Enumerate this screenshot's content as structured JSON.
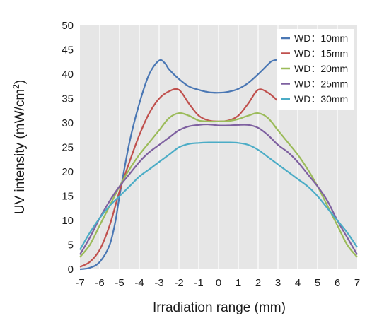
{
  "chart_data": {
    "type": "line",
    "title": "",
    "xlabel": "Irradiation range (mm)",
    "ylabel_main": "UV intensity (mW/cm",
    "ylabel_sup": "2",
    "ylabel_end": ")",
    "xlim": [
      -7,
      7
    ],
    "ylim": [
      0,
      50
    ],
    "xticks": [
      -7,
      -6,
      -5,
      -4,
      -3,
      -2,
      -1,
      0,
      1,
      2,
      3,
      4,
      5,
      6,
      7
    ],
    "yticks": [
      0,
      5,
      10,
      15,
      20,
      25,
      30,
      35,
      40,
      45,
      50
    ],
    "grid": "vertical",
    "background": "#e6e6e6",
    "legend_position": "top-right",
    "series": [
      {
        "name": "WD：10mm",
        "color": "#4a77b4",
        "x": [
          -7,
          -6.5,
          -6,
          -5.5,
          -5.2,
          -5,
          -4.5,
          -4,
          -3.5,
          -3,
          -2.7,
          -2.5,
          -2,
          -1.5,
          -1,
          -0.5,
          0,
          0.5,
          1,
          1.5,
          2,
          2.5,
          2.7,
          3
        ],
        "y": [
          0,
          0.3,
          1.5,
          5,
          10,
          15,
          26,
          34,
          40,
          42.8,
          42.2,
          41,
          39,
          37.5,
          36.8,
          36.3,
          36.2,
          36.4,
          37,
          38.2,
          40,
          42,
          42.7,
          43
        ]
      },
      {
        "name": "WD：15mm",
        "color": "#c0504d",
        "x": [
          -7,
          -6.5,
          -6,
          -5.5,
          -5,
          -4.5,
          -4,
          -3.5,
          -3,
          -2.5,
          -2,
          -1.5,
          -1,
          -0.5,
          0,
          0.5,
          1,
          1.5,
          2,
          2.5,
          3
        ],
        "y": [
          0.5,
          1.5,
          4,
          9,
          16,
          22,
          27.5,
          32,
          35,
          36.5,
          36.8,
          34,
          31.5,
          30.5,
          30.3,
          30.5,
          31.5,
          34,
          36.8,
          36.2,
          34.5
        ]
      },
      {
        "name": "WD：20mm",
        "color": "#9bbb59",
        "x": [
          -7,
          -6.5,
          -6,
          -5.5,
          -5,
          -4.5,
          -4,
          -3.5,
          -3,
          -2.5,
          -2,
          -1.5,
          -1,
          -0.5,
          0,
          0.5,
          1,
          1.5,
          2,
          2.5,
          3,
          3.5,
          4,
          4.5,
          5,
          5.5,
          6,
          6.5,
          7
        ],
        "y": [
          2.5,
          5,
          9,
          13,
          17,
          20.5,
          23.5,
          26,
          28.5,
          31,
          32,
          31.5,
          30.5,
          30.3,
          30.3,
          30.4,
          30.8,
          31.5,
          32,
          31,
          28.5,
          26,
          23.5,
          20.5,
          17,
          13,
          9,
          5,
          2.5
        ]
      },
      {
        "name": "WD：25mm",
        "color": "#7e60a0",
        "x": [
          -7,
          -6.5,
          -6,
          -5.5,
          -5,
          -4.5,
          -4,
          -3.5,
          -3,
          -2.5,
          -2,
          -1.5,
          -1,
          -0.5,
          0,
          0.5,
          1,
          1.5,
          2,
          2.5,
          3,
          3.5,
          4,
          4.5,
          5,
          5.5,
          6,
          6.5,
          7
        ],
        "y": [
          3,
          6.5,
          10.5,
          14,
          17,
          19.5,
          22,
          24,
          25.5,
          27,
          28.5,
          29.3,
          29.6,
          29.7,
          29.5,
          29.5,
          29.6,
          29.6,
          29,
          27.5,
          25.5,
          24,
          22,
          19.5,
          17,
          14,
          10,
          6.5,
          3
        ]
      },
      {
        "name": "WD：30mm",
        "color": "#4bacc6",
        "x": [
          -7,
          -6.5,
          -6,
          -5.5,
          -5,
          -4.5,
          -4,
          -3.5,
          -3,
          -2.5,
          -2,
          -1.5,
          -1,
          -0.5,
          0,
          0.5,
          1,
          1.5,
          2,
          2.5,
          3,
          3.5,
          4,
          4.5,
          5,
          5.5,
          6,
          6.5,
          7
        ],
        "y": [
          4,
          7.5,
          10.5,
          13,
          15,
          17,
          19,
          20.5,
          22,
          23.5,
          25,
          25.7,
          25.9,
          26,
          26,
          26,
          25.9,
          25.5,
          24.5,
          23,
          21.5,
          20,
          18.5,
          17,
          15,
          12.5,
          10,
          7.5,
          4.5
        ]
      }
    ]
  }
}
